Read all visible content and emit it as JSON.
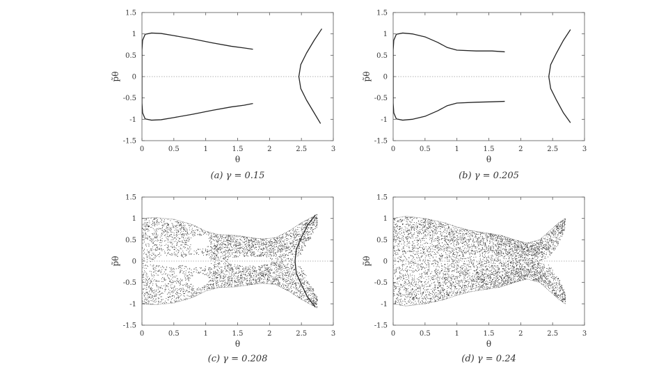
{
  "chart_data": [
    {
      "id": "a",
      "type": "scatter",
      "caption_tag": "(a)",
      "caption_text": "γ = 0.15",
      "xlabel": "θ",
      "ylabel": "p̃θ",
      "xlim": [
        0,
        3
      ],
      "ylim": [
        -1.5,
        1.5
      ],
      "xticks": [
        "0",
        "0.5",
        "1",
        "1.5",
        "2",
        "2.5",
        "3"
      ],
      "yticks": [
        "-1.5",
        "-1",
        "-0.5",
        "0",
        "0.5",
        "1",
        "1.5"
      ],
      "zero_line": true,
      "series": [
        {
          "style": "curve",
          "points": [
            [
              0,
              0.62
            ],
            [
              0.01,
              0.85
            ],
            [
              0.05,
              0.99
            ],
            [
              0.15,
              1.02
            ],
            [
              0.3,
              1.01
            ],
            [
              0.5,
              0.96
            ],
            [
              0.8,
              0.88
            ],
            [
              1.1,
              0.79
            ],
            [
              1.4,
              0.71
            ],
            [
              1.6,
              0.67
            ],
            [
              1.74,
              0.64
            ]
          ]
        },
        {
          "style": "curve",
          "points": [
            [
              0,
              -0.62
            ],
            [
              0.01,
              -0.85
            ],
            [
              0.05,
              -0.99
            ],
            [
              0.15,
              -1.02
            ],
            [
              0.3,
              -1.01
            ],
            [
              0.5,
              -0.96
            ],
            [
              0.8,
              -0.88
            ],
            [
              1.1,
              -0.79
            ],
            [
              1.4,
              -0.71
            ],
            [
              1.6,
              -0.67
            ],
            [
              1.74,
              -0.63
            ]
          ]
        },
        {
          "style": "curve",
          "points": [
            [
              0,
              -0.62
            ],
            [
              0,
              0.62
            ]
          ]
        },
        {
          "style": "curve",
          "points": [
            [
              2.82,
              1.12
            ],
            [
              2.7,
              0.85
            ],
            [
              2.58,
              0.55
            ],
            [
              2.49,
              0.28
            ],
            [
              2.46,
              0
            ],
            [
              2.49,
              -0.28
            ],
            [
              2.58,
              -0.55
            ],
            [
              2.7,
              -0.85
            ],
            [
              2.8,
              -1.1
            ]
          ]
        }
      ]
    },
    {
      "id": "b",
      "type": "scatter",
      "caption_tag": "(b)",
      "caption_text": "γ = 0.205",
      "xlabel": "θ",
      "ylabel": "p̃θ",
      "xlim": [
        0,
        3
      ],
      "ylim": [
        -1.5,
        1.5
      ],
      "xticks": [
        "0",
        "0.5",
        "1",
        "1.5",
        "2",
        "2.5",
        "3"
      ],
      "yticks": [
        "-1.5",
        "-1",
        "-0.5",
        "0",
        "0.5",
        "1",
        "1.5"
      ],
      "zero_line": true,
      "series": [
        {
          "style": "curve",
          "points": [
            [
              0,
              0.62
            ],
            [
              0.01,
              0.85
            ],
            [
              0.05,
              0.99
            ],
            [
              0.15,
              1.02
            ],
            [
              0.3,
              1.0
            ],
            [
              0.5,
              0.93
            ],
            [
              0.7,
              0.8
            ],
            [
              0.85,
              0.68
            ],
            [
              1.0,
              0.62
            ],
            [
              1.3,
              0.6
            ],
            [
              1.55,
              0.6
            ],
            [
              1.75,
              0.58
            ]
          ]
        },
        {
          "style": "curve",
          "points": [
            [
              0,
              -0.62
            ],
            [
              0.01,
              -0.85
            ],
            [
              0.05,
              -0.99
            ],
            [
              0.15,
              -1.02
            ],
            [
              0.3,
              -1.0
            ],
            [
              0.5,
              -0.93
            ],
            [
              0.7,
              -0.8
            ],
            [
              0.85,
              -0.68
            ],
            [
              1.0,
              -0.62
            ],
            [
              1.3,
              -0.6
            ],
            [
              1.55,
              -0.59
            ],
            [
              1.75,
              -0.58
            ]
          ]
        },
        {
          "style": "curve",
          "points": [
            [
              0,
              -0.62
            ],
            [
              0,
              0.62
            ]
          ]
        },
        {
          "style": "curve",
          "points": [
            [
              2.78,
              1.1
            ],
            [
              2.67,
              0.85
            ],
            [
              2.56,
              0.55
            ],
            [
              2.47,
              0.28
            ],
            [
              2.44,
              0
            ],
            [
              2.47,
              -0.28
            ],
            [
              2.56,
              -0.55
            ],
            [
              2.67,
              -0.85
            ],
            [
              2.78,
              -1.08
            ]
          ]
        }
      ]
    },
    {
      "id": "c",
      "type": "scatter",
      "caption_tag": "(c)",
      "caption_text": "γ = 0.208",
      "xlabel": "θ",
      "ylabel": "p̃θ",
      "xlim": [
        0,
        3
      ],
      "ylim": [
        -1.5,
        1.5
      ],
      "xticks": [
        "0",
        "0.5",
        "1",
        "1.5",
        "2",
        "2.5",
        "3"
      ],
      "yticks": [
        "-1.5",
        "-1",
        "-0.5",
        "0",
        "0.5",
        "1",
        "1.5"
      ],
      "zero_line": true,
      "series": [
        {
          "style": "chaotic",
          "envelope_x": [
            0,
            0.2,
            0.5,
            0.8,
            1.0,
            1.2,
            1.5,
            1.7,
            1.9,
            2.1,
            2.3,
            2.45,
            2.6,
            2.75
          ],
          "envelope_top": [
            1.0,
            1.02,
            0.98,
            0.85,
            0.7,
            0.62,
            0.6,
            0.55,
            0.52,
            0.55,
            0.7,
            0.85,
            0.98,
            1.1
          ],
          "envelope_inner": [
            0.0,
            0.0,
            0.0,
            0.0,
            0.0,
            0.0,
            0.0,
            0.0,
            0.0,
            0.0,
            0.0,
            0.0,
            0.4,
            0.8
          ],
          "holes": [
            {
              "cx": 0.45,
              "cy": 0,
              "rx": 0.28,
              "ry": 0.12
            },
            {
              "cx": 0.85,
              "cy": 0.05,
              "rx": 0.22,
              "ry": 0.1
            },
            {
              "cx": 1.7,
              "cy": 0,
              "rx": 0.35,
              "ry": 0.11
            },
            {
              "cx": 0.9,
              "cy": 0.45,
              "rx": 0.15,
              "ry": 0.15
            },
            {
              "cx": 0.9,
              "cy": -0.45,
              "rx": 0.15,
              "ry": 0.15
            }
          ],
          "count": 4200
        },
        {
          "style": "curve",
          "points": [
            [
              2.72,
              1.08
            ],
            [
              2.6,
              0.85
            ],
            [
              2.5,
              0.55
            ],
            [
              2.42,
              0.28
            ],
            [
              2.4,
              0
            ],
            [
              2.42,
              -0.28
            ],
            [
              2.5,
              -0.55
            ],
            [
              2.6,
              -0.85
            ],
            [
              2.72,
              -1.08
            ]
          ]
        }
      ]
    },
    {
      "id": "d",
      "type": "scatter",
      "caption_tag": "(d)",
      "caption_text": "γ = 0.24",
      "xlabel": "θ",
      "ylabel": "p̃θ",
      "xlim": [
        0,
        3
      ],
      "ylim": [
        -1.5,
        1.5
      ],
      "xticks": [
        "0",
        "0.5",
        "1",
        "1.5",
        "2",
        "2.5",
        "3"
      ],
      "yticks": [
        "-1.5",
        "-1",
        "-0.5",
        "0",
        "0.5",
        "1",
        "1.5"
      ],
      "zero_line": true,
      "series": [
        {
          "style": "chaotic",
          "envelope_x": [
            0,
            0.2,
            0.5,
            0.8,
            1.0,
            1.2,
            1.5,
            1.7,
            1.9,
            2.1,
            2.3,
            2.45,
            2.6,
            2.7
          ],
          "envelope_top": [
            1.0,
            1.05,
            1.0,
            0.9,
            0.8,
            0.72,
            0.65,
            0.6,
            0.5,
            0.42,
            0.5,
            0.7,
            0.9,
            1.0
          ],
          "envelope_inner": [
            0,
            0,
            0,
            0,
            0,
            0,
            0,
            0,
            0,
            0,
            0,
            0.1,
            0.4,
            0.75
          ],
          "holes": [],
          "count": 5200
        }
      ]
    }
  ]
}
